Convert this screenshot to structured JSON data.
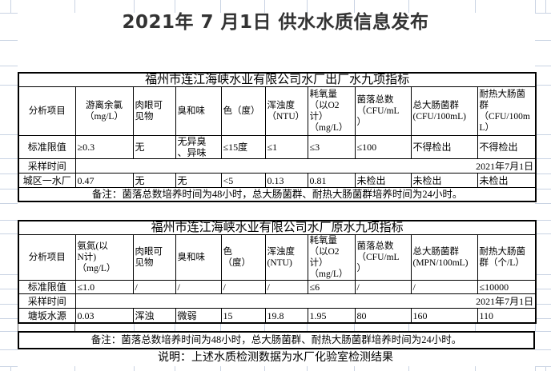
{
  "page": {
    "title": "2021年 7 月1日 供水水质信息发布",
    "statement": "说明：上述水质检测数据为水厂化验室检测结果"
  },
  "table1": {
    "title": "福州市连江海峡水业有限公司水厂出厂水九项指标",
    "headers": [
      "分析项目",
      "游离余氯\n（mg/L）",
      "肉眼可\n见物",
      "臭和味",
      "色（度）",
      "浑浊度\n（NTU）",
      "耗氧量\n（以O2计）\n（mg/L）",
      "菌落总数\n（CFU/mL\n）",
      "总大肠菌群\n(CFU/100mL)",
      "耐热大肠菌\n群\n（CFU/100m\nL）"
    ],
    "limit_label": "标准限值",
    "limits": [
      "≥0.3",
      "无",
      "无异臭\n、异味",
      "≤15度",
      "≤1",
      "≤3",
      "≤100",
      "不得检出",
      "不得检出"
    ],
    "time_label": "采样时间",
    "time_value": "2021年7月1日",
    "sample_label": "城区一水厂",
    "samples": [
      "0.47",
      "无",
      "无",
      "<5",
      "0.13",
      "0.81",
      "未检出",
      "未检出",
      "未检出"
    ],
    "note": "备注：菌落总数培养时间为48小时，总大肠菌群、耐热大肠菌群培养时间为24小时。"
  },
  "table2": {
    "title": "福州市连江海峡水业有限公司水厂原水九项指标",
    "headers": [
      "分析项目",
      "氨氮(以\nN计)\n（mg/L）",
      "肉眼可\n见物",
      "臭和味",
      "色\n（度）",
      "浑浊度\n(NTU)",
      "耗氧量\n（以O2计）\n（mg/L）",
      "菌落总数\n（CFU/mL\n）",
      "总大肠菌群\n(MPN/100mL)",
      "耐热大肠菌\n群（个/L）"
    ],
    "limit_label": "标准限值",
    "limits": [
      "≤1.0",
      "/",
      "/",
      "/",
      "/",
      "≤6",
      "/",
      "/",
      "≤10000"
    ],
    "time_label": "采样时间",
    "time_value": "2021年7月1日",
    "sample_label": "塘坂水源",
    "samples": [
      "0.03",
      "浑浊",
      "微弱",
      "15",
      "19.8",
      "1.95",
      "80",
      "160",
      "110"
    ],
    "note": "备注：菌落总数培养时间为48小时，总大肠菌群、耐热大肠菌群培养时间为24小时。"
  },
  "colors": {
    "table_border": "#000000",
    "margin_gridline": "#c9d3e3",
    "title_text": "#333333"
  }
}
